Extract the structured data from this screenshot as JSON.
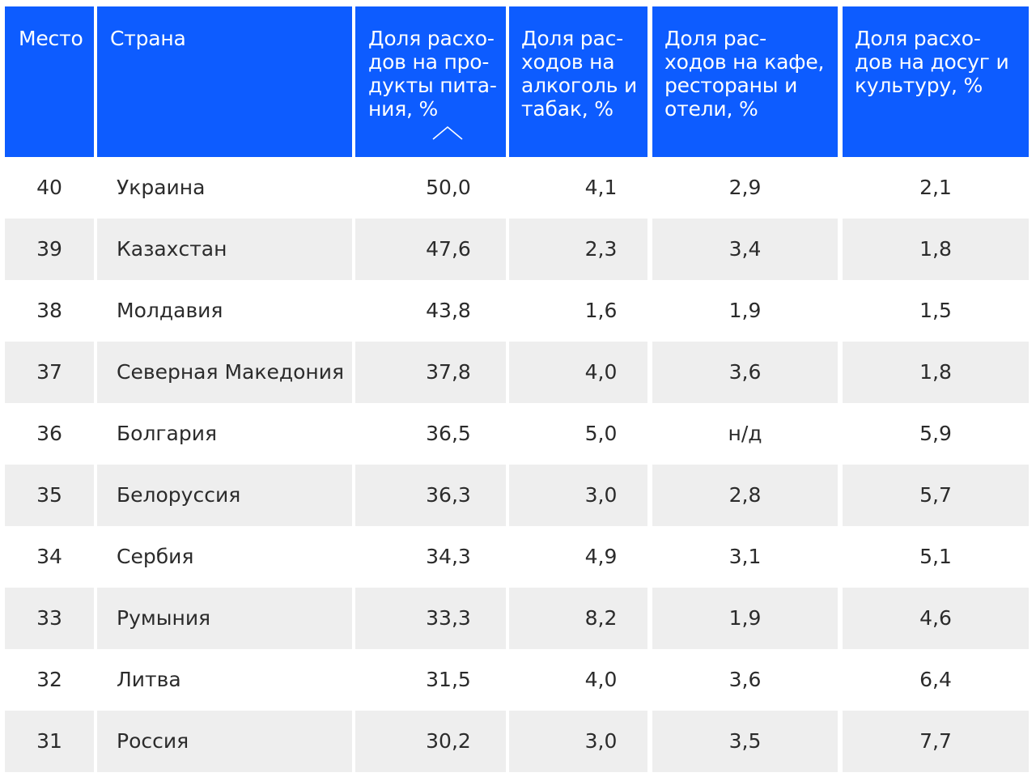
{
  "table": {
    "columns": [
      {
        "id": "place",
        "label": "Место"
      },
      {
        "id": "country",
        "label": "Страна"
      },
      {
        "id": "food",
        "label": "Доля расхо-\nдов на про-\nдукты пита-\nния, %",
        "sorted": "ascending"
      },
      {
        "id": "alcohol",
        "label": "Доля рас-\nходов на\nалкоголь и\nтабак, %"
      },
      {
        "id": "cafe",
        "label": "Доля рас-\nходов на кафе,\nрестораны и\nотели, %"
      },
      {
        "id": "leisure",
        "label": "Доля расхо-\nдов на досуг и\nкультуру, %"
      }
    ],
    "sort_icon": "chevron-up-icon",
    "rows": [
      [
        "40",
        "Украина",
        "50,0",
        "4,1",
        "2,9",
        "2,1"
      ],
      [
        "39",
        "Казахстан",
        "47,6",
        "2,3",
        "3,4",
        "1,8"
      ],
      [
        "38",
        "Молдавия",
        "43,8",
        "1,6",
        "1,9",
        "1,5"
      ],
      [
        "37",
        "Северная Македония",
        "37,8",
        "4,0",
        "3,6",
        "1,8"
      ],
      [
        "36",
        "Болгария",
        "36,5",
        "5,0",
        "н/д",
        "5,9"
      ],
      [
        "35",
        "Белоруссия",
        "36,3",
        "3,0",
        "2,8",
        "5,7"
      ],
      [
        "34",
        "Сербия",
        "34,3",
        "4,9",
        "3,1",
        "5,1"
      ],
      [
        "33",
        "Румыния",
        "33,3",
        "8,2",
        "1,9",
        "4,6"
      ],
      [
        "32",
        "Литва",
        "31,5",
        "4,0",
        "3,6",
        "6,4"
      ],
      [
        "31",
        "Россия",
        "30,2",
        "3,0",
        "3,5",
        "7,7"
      ]
    ],
    "colors": {
      "header_bg": "#0d5cff",
      "header_text": "#ffffff",
      "row_alt_bg": "#eeeeee"
    }
  }
}
